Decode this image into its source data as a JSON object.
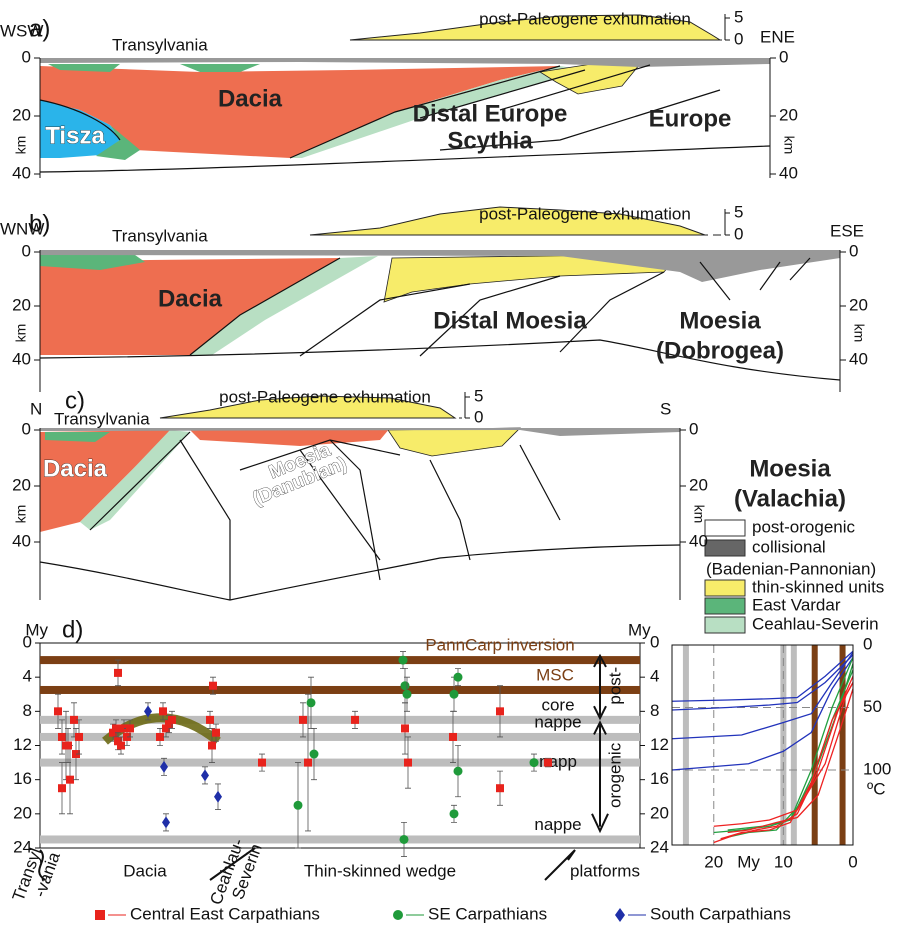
{
  "sections": [
    {
      "label": "a)",
      "west": "WSW",
      "east": "ENE",
      "exhumation": "post-Paleogene exhumation",
      "exhumation_ticks": [
        5,
        0
      ],
      "region": "Transylvania",
      "depth_ticks": [
        0,
        20,
        40
      ],
      "depth_unit": "km",
      "units": [
        "Dacia",
        "Tisza",
        "Distal Europe",
        "Scythia",
        "Europe"
      ]
    },
    {
      "label": "b)",
      "west": "WNW",
      "east": "ESE",
      "exhumation": "post-Paleogene exhumation",
      "exhumation_ticks": [
        5,
        0
      ],
      "region": "Transylvania",
      "depth_ticks": [
        0,
        20,
        40
      ],
      "depth_unit": "km",
      "units": [
        "Dacia",
        "Distal Moesia",
        "Moesia",
        "(Dobrogea)"
      ]
    },
    {
      "label": "c)",
      "west": "N",
      "east": "S",
      "exhumation": "post-Paleogene exhumation",
      "exhumation_ticks": [
        5,
        0
      ],
      "region": "Transylvania",
      "depth_ticks": [
        0,
        20,
        40
      ],
      "depth_unit": "km",
      "units": [
        "Dacia",
        "Moesia",
        "(Danubian)",
        "Moesia",
        "(Valachia)"
      ]
    }
  ],
  "legend": [
    "post-orogenic",
    "collisional",
    "(Badenian-Pannonian)",
    "thin-skinned units",
    "East Vardar",
    "Ceahlau-Severin"
  ],
  "chart_data": [
    {
      "type": "scatter",
      "title": "d)",
      "y_label": "My",
      "ylim": [
        0,
        24
      ],
      "yticks": [
        0,
        4,
        8,
        12,
        16,
        20,
        24
      ],
      "bands": [
        {
          "value": 2,
          "color": "#7b3f14",
          "label": "PannCarp inversion"
        },
        {
          "value": 5.5,
          "color": "#7b3f14",
          "label": "MSC"
        },
        {
          "value": 9,
          "color": "#bdbdbd",
          "label": "core"
        },
        {
          "value": 11,
          "color": "#bdbdbd",
          "label": "nappe"
        },
        {
          "value": 14,
          "color": "#bdbdbd",
          "label": "napp"
        },
        {
          "value": 23,
          "color": "#bdbdbd",
          "label": "nappe"
        }
      ],
      "phases": [
        "post-",
        "orogenic"
      ],
      "regions": [
        [
          "Transyl",
          "-vania"
        ],
        [
          "Dacia"
        ],
        [
          "Ceahlau-",
          "Severin"
        ],
        [
          "Thin-skinned wedge"
        ],
        [
          "platforms"
        ]
      ],
      "series": [
        {
          "name": "Central East Carpathians",
          "color": "#e8231c",
          "values": [
            8,
            11,
            17,
            12,
            16,
            9,
            13,
            11,
            12,
            3.5,
            10.5,
            10,
            11.5,
            12,
            10,
            11,
            10,
            11,
            8,
            10,
            9.5,
            9,
            9,
            12,
            5,
            10.5,
            14,
            9,
            14,
            9,
            10,
            14,
            11,
            8,
            17,
            14
          ],
          "errors": [
            2,
            2,
            3,
            4,
            4,
            2,
            3,
            2,
            2,
            1.5,
            1,
            1,
            1,
            1,
            1,
            1,
            1,
            1,
            1,
            1,
            1,
            1,
            1,
            2,
            1,
            1,
            1,
            2,
            8,
            1,
            3,
            3,
            3,
            3,
            2,
            0.5
          ]
        },
        {
          "name": "SE Carpathians",
          "color": "#1f9a3a",
          "values": [
            19,
            7,
            13,
            2,
            5,
            6,
            23,
            6,
            4,
            15,
            20,
            14
          ],
          "errors": [
            5,
            3,
            3,
            1,
            2,
            2,
            2,
            2,
            1,
            3,
            1,
            1
          ]
        },
        {
          "name": "South Carpathians",
          "color": "#1f2fa8",
          "values": [
            8,
            14.5,
            21,
            15.5,
            18
          ],
          "errors": [
            1,
            1,
            1,
            1,
            1.5
          ]
        }
      ]
    },
    {
      "type": "line",
      "x_label": "My",
      "y_label": "ºC",
      "xlim": [
        26,
        0
      ],
      "xticks": [
        20,
        10,
        0
      ],
      "ylim": [
        0,
        160
      ],
      "yticks": [
        0,
        50,
        100
      ],
      "bands": [
        {
          "value": 24,
          "color": "#bdbdbd"
        },
        {
          "value": 10,
          "color": "#bdbdbd"
        },
        {
          "value": 8.5,
          "color": "#bdbdbd"
        },
        {
          "value": 5.5,
          "color": "#7b3f14"
        },
        {
          "value": 1.5,
          "color": "#7b3f14"
        }
      ],
      "series": [
        {
          "color": "#2233bb",
          "x": [
            26,
            18,
            12,
            8,
            4,
            0
          ],
          "values": [
            45,
            44,
            43,
            42,
            25,
            5
          ]
        },
        {
          "color": "#2233bb",
          "x": [
            26,
            18,
            12,
            8,
            4,
            0
          ],
          "values": [
            52,
            50,
            48,
            46,
            30,
            8
          ]
        },
        {
          "color": "#2233bb",
          "x": [
            26,
            16,
            10,
            6,
            3,
            0
          ],
          "values": [
            75,
            72,
            62,
            55,
            30,
            6
          ]
        },
        {
          "color": "#2233bb",
          "x": [
            26,
            15,
            10,
            6,
            3,
            0
          ],
          "values": [
            100,
            95,
            85,
            70,
            35,
            10
          ]
        },
        {
          "color": "#22a040",
          "x": [
            20,
            16,
            12,
            9,
            6,
            3,
            0
          ],
          "values": [
            150,
            148,
            145,
            140,
            110,
            60,
            20
          ]
        },
        {
          "color": "#22a040",
          "x": [
            19,
            15,
            11,
            8,
            5,
            2,
            0
          ],
          "values": [
            155,
            150,
            148,
            130,
            95,
            50,
            15
          ]
        },
        {
          "color": "#22a040",
          "x": [
            18,
            13,
            9,
            6,
            3,
            0
          ],
          "values": [
            148,
            145,
            140,
            100,
            50,
            10
          ]
        },
        {
          "color": "#ee2222",
          "x": [
            20,
            17,
            14,
            11,
            8,
            5,
            2,
            0
          ],
          "values": [
            158,
            152,
            148,
            145,
            135,
            100,
            50,
            25
          ]
        },
        {
          "color": "#ee2222",
          "x": [
            19,
            16,
            12,
            9,
            6,
            3,
            0
          ],
          "values": [
            155,
            150,
            148,
            142,
            110,
            60,
            30
          ]
        },
        {
          "color": "#ee2222",
          "x": [
            18,
            15,
            11,
            8,
            5,
            2,
            0
          ],
          "values": [
            150,
            148,
            142,
            138,
            120,
            70,
            35
          ]
        },
        {
          "color": "#ee2222",
          "x": [
            20,
            16,
            12,
            8,
            4,
            1,
            0
          ],
          "values": [
            145,
            143,
            140,
            132,
            95,
            40,
            30
          ]
        }
      ]
    }
  ]
}
